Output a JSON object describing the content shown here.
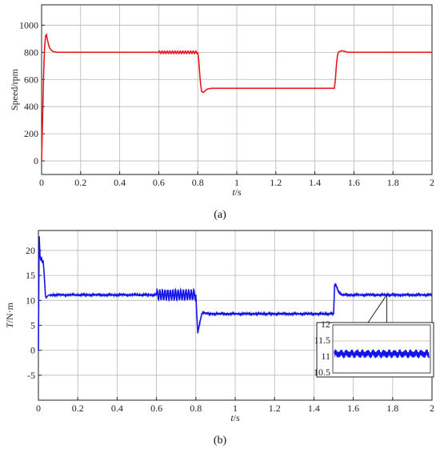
{
  "colors": {
    "panel_a_line": "#e8191c",
    "panel_b_line": "#1414e6",
    "grid": "#b8b8b8",
    "axis": "#222222"
  },
  "captions": {
    "a": "(a)",
    "b": "(b)"
  },
  "chart_data": [
    {
      "type": "line",
      "panel": "a",
      "ylabel": "Speed/rpm",
      "xlabel": "t/s",
      "xlim": [
        0,
        2
      ],
      "ylim": [
        -100,
        1150
      ],
      "xticks": [
        0,
        0.2,
        0.4,
        0.6,
        0.8,
        1,
        1.2,
        1.4,
        1.6,
        1.8,
        2
      ],
      "xtick_labels": [
        "0",
        "0.2",
        "0.4",
        "0.6",
        "0.8",
        "1",
        "1.2",
        "1.4",
        "1.6",
        "1.8",
        "2"
      ],
      "yticks": [
        0,
        200,
        400,
        600,
        800,
        1000
      ],
      "ytick_labels": [
        "0",
        "200",
        "400",
        "600",
        "800",
        "1000"
      ],
      "grid": true,
      "series": [
        {
          "color": "#e8191c",
          "x": [
            0,
            0.005,
            0.01,
            0.015,
            0.02,
            0.025,
            0.03,
            0.04,
            0.05,
            0.06,
            0.08,
            0.1,
            0.6,
            0.8,
            0.805,
            0.81,
            0.815,
            0.82,
            0.83,
            0.84,
            0.85,
            0.87,
            0.9,
            1.5,
            1.505,
            1.51,
            1.515,
            1.52,
            1.53,
            1.54,
            1.55,
            1.57,
            1.6,
            2.0
          ],
          "y": [
            0,
            300,
            620,
            830,
            920,
            930,
            890,
            835,
            815,
            805,
            800,
            800,
            800,
            800,
            740,
            640,
            560,
            510,
            505,
            520,
            530,
            535,
            535,
            535,
            600,
            700,
            770,
            800,
            808,
            812,
            808,
            800,
            800,
            800
          ],
          "ripple": {
            "from": 0.6,
            "to": 0.8,
            "amplitude": 9,
            "frequency": 75
          }
        }
      ]
    },
    {
      "type": "line",
      "panel": "b",
      "ylabel": "T/N·m",
      "xlabel": "t/s",
      "xlim": [
        0,
        2
      ],
      "ylim": [
        -10,
        24
      ],
      "xticks": [
        0,
        0.2,
        0.4,
        0.6,
        0.8,
        1,
        1.2,
        1.4,
        1.6,
        1.8,
        2
      ],
      "xtick_labels": [
        "0",
        "0.2",
        "0.4",
        "0.6",
        "0.8",
        "1",
        "1.2",
        "1.4",
        "1.6",
        "1.8",
        "2"
      ],
      "yticks": [
        -5,
        0,
        5,
        10,
        15,
        20
      ],
      "ytick_labels": [
        "-5",
        "0",
        "5",
        "10",
        "15",
        "20"
      ],
      "grid": true,
      "series": [
        {
          "color": "#1414e6",
          "x": [
            0,
            0.004,
            0.008,
            0.012,
            0.016,
            0.02,
            0.024,
            0.028,
            0.032,
            0.036,
            0.04,
            0.045,
            0.05,
            0.06,
            0.08,
            0.1,
            0.6,
            0.8,
            0.805,
            0.81,
            0.82,
            0.83,
            0.84,
            0.85,
            0.87,
            0.9,
            1.5,
            1.505,
            1.51,
            1.52,
            1.53,
            1.54,
            1.56,
            1.6,
            2.0
          ],
          "y": [
            0,
            23,
            19,
            18,
            18.5,
            17.5,
            18,
            16,
            13.5,
            10.8,
            10.5,
            10.8,
            11,
            11.1,
            11.1,
            11.1,
            11.1,
            11.1,
            7,
            3.5,
            5.5,
            7.3,
            7.6,
            7.4,
            7.3,
            7.3,
            7.3,
            13,
            13.3,
            12.2,
            11.5,
            11.1,
            11.1,
            11.1,
            11.1
          ],
          "ripple": {
            "from": 0.6,
            "to": 0.8,
            "amplitude": 1.0,
            "frequency": 75
          },
          "noise_amplitude": 0.15
        }
      ],
      "inset": {
        "ylim": [
          10.5,
          12
        ],
        "yticks": [
          10.5,
          11,
          11.5,
          12
        ],
        "ytick_labels": [
          "10.5",
          "11",
          "11.5",
          "12"
        ],
        "x_range": [
          1.55,
          1.95
        ],
        "mean": 11.1,
        "amplitude": 0.14,
        "zoom_at_x": 1.77
      }
    }
  ]
}
